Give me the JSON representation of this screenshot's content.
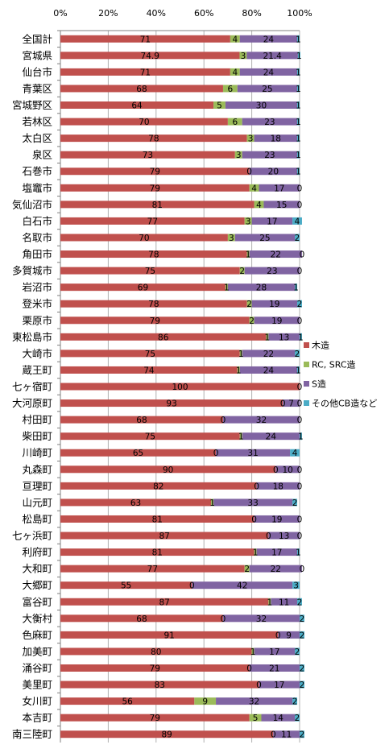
{
  "chart_data": {
    "type": "bar",
    "orientation": "horizontal",
    "stacked": "percent",
    "xlim": [
      0,
      100
    ],
    "x_ticks": [
      "0%",
      "20%",
      "40%",
      "60%",
      "80%",
      "100%"
    ],
    "x_tick_values": [
      0,
      20,
      40,
      60,
      80,
      100
    ],
    "grid": true,
    "legend_position": "right",
    "categories": [
      "全国計",
      "宮城県",
      "仙台市",
      "青葉区",
      "宮城野区",
      "若林区",
      "太白区",
      "泉区",
      "石巻市",
      "塩竈市",
      "気仙沼市",
      "白石市",
      "名取市",
      "角田市",
      "多賀城市",
      "岩沼市",
      "登米市",
      "栗原市",
      "東松島市",
      "大崎市",
      "蔵王町",
      "七ヶ宿町",
      "大河原町",
      "村田町",
      "柴田町",
      "川崎町",
      "丸森町",
      "亘理町",
      "山元町",
      "松島町",
      "七ヶ浜町",
      "利府町",
      "大和町",
      "大郷町",
      "富谷町",
      "大衡村",
      "色麻町",
      "加美町",
      "涌谷町",
      "美里町",
      "女川町",
      "本吉町",
      "南三陸町"
    ],
    "series": [
      {
        "name": "木造",
        "color": "#c0504d",
        "values": [
          71,
          74.9,
          71,
          68,
          64,
          70,
          78,
          73,
          79,
          79,
          81,
          77,
          70,
          78,
          75,
          69,
          78,
          79,
          86,
          75,
          74,
          100,
          93,
          68,
          75,
          65,
          90,
          82,
          63,
          81,
          87,
          81,
          77,
          55,
          87,
          68,
          91,
          80,
          79,
          83,
          56,
          79,
          89
        ],
        "labels": [
          "71",
          "74.9",
          "71",
          "68",
          "64",
          "70",
          "78",
          "73",
          "79",
          "79",
          "81",
          "77",
          "70",
          "78",
          "75",
          "69",
          "78",
          "79",
          "86",
          "75",
          "74",
          "100",
          "93",
          "68",
          "75",
          "65",
          "90",
          "82",
          "63",
          "81",
          "87",
          "81",
          "77",
          "55",
          "87",
          "68",
          "91",
          "80",
          "79",
          "83",
          "56",
          "79",
          "89"
        ]
      },
      {
        "name": "RC, SRC造",
        "color": "#9bbb59",
        "values": [
          4,
          3,
          4,
          6,
          5,
          6,
          3,
          3,
          0,
          4,
          4,
          3,
          3,
          1,
          2,
          1,
          2,
          2,
          1,
          1,
          1,
          0,
          0,
          0,
          1,
          0,
          0,
          0,
          1,
          0,
          0,
          1,
          2,
          0,
          1,
          0,
          0,
          1,
          0,
          0,
          9,
          5,
          0
        ],
        "labels": [
          "4",
          "3",
          "4",
          "6",
          "5",
          "6",
          "3",
          "3",
          "0",
          "4",
          "4",
          "3",
          "3",
          "1",
          "2",
          "1",
          "2",
          "2",
          "1",
          "1",
          "1",
          "",
          "0",
          "0",
          "1",
          "0",
          "0",
          "0",
          "1",
          "0",
          "0",
          "1",
          "2",
          "0",
          "1",
          "0",
          "0",
          "1",
          "0",
          "0",
          "9",
          "5",
          "0"
        ]
      },
      {
        "name": "S造",
        "color": "#8064a2",
        "values": [
          24,
          21.4,
          24,
          25,
          30,
          23,
          18,
          23,
          20,
          17,
          15,
          17,
          25,
          22,
          23,
          28,
          19,
          19,
          13,
          22,
          24,
          0,
          7,
          32,
          24,
          31,
          10,
          18,
          33,
          19,
          13,
          17,
          22,
          42,
          11,
          32,
          9,
          17,
          21,
          17,
          32,
          14,
          11
        ],
        "labels": [
          "24",
          "21.4",
          "24",
          "25",
          "30",
          "23",
          "18",
          "23",
          "20",
          "17",
          "15",
          "17",
          "25",
          "22",
          "23",
          "28",
          "19",
          "19",
          "13",
          "22",
          "24",
          "",
          "7",
          "32",
          "24",
          "31",
          "10",
          "18",
          "33",
          "19",
          "13",
          "17",
          "22",
          "42",
          "11",
          "32",
          "9",
          "17",
          "21",
          "17",
          "32",
          "14",
          "11"
        ]
      },
      {
        "name": "その他CB造など",
        "color": "#4bacc6",
        "values": [
          1,
          1,
          1,
          1,
          1,
          1,
          1,
          1,
          1,
          0,
          0,
          4,
          2,
          0,
          0,
          1,
          2,
          0,
          1,
          2,
          1,
          0,
          0,
          0,
          1,
          4,
          0,
          0,
          2,
          0,
          0,
          1,
          0,
          3,
          2,
          2,
          2,
          2,
          2,
          2,
          2,
          2,
          2
        ],
        "labels": [
          "1",
          "1",
          "1",
          "1",
          "1",
          "1",
          "1",
          "1",
          "1",
          "0",
          "0",
          "4",
          "2",
          "0",
          "0",
          "1",
          "2",
          "0",
          "1",
          "2",
          "1",
          "0",
          "0",
          "0",
          "1",
          "4",
          "0",
          "0",
          "2",
          "0",
          "0",
          "1",
          "0",
          "3",
          "2",
          "2",
          "2",
          "2",
          "2",
          "2",
          "2",
          "2",
          "2"
        ]
      }
    ]
  }
}
